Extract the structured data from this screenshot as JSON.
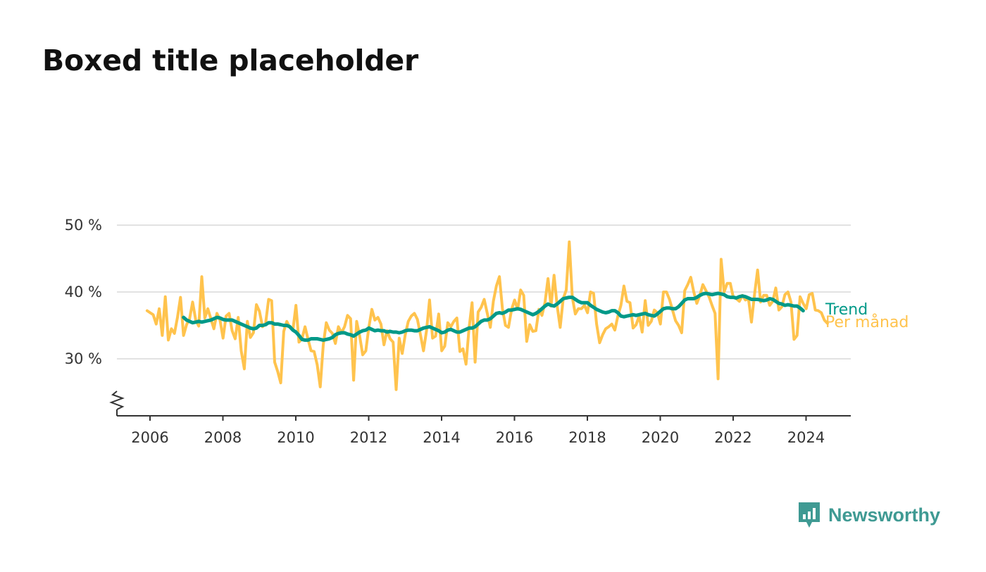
{
  "title": "Boxed title placeholder",
  "subtitle": "",
  "brand": {
    "name": "Newsworthy",
    "color": "#3f9a93",
    "icon": "newsworthy-logo-icon"
  },
  "colors": {
    "trend": "#009988",
    "monthly": "#ffc34d",
    "grid": "#d9d9d9",
    "axis": "#333333"
  },
  "chart_data": {
    "type": "line",
    "title": "Boxed title placeholder",
    "subtitle": "",
    "ylim": [
      22,
      50
    ],
    "yticks": [
      30,
      40,
      50
    ],
    "ytick_labels": [
      "30 %",
      "40 %",
      "50 %"
    ],
    "xlim": [
      2005.1,
      2025.3
    ],
    "xticks": [
      2006,
      2008,
      2010,
      2012,
      2014,
      2016,
      2018,
      2020,
      2022,
      2024
    ],
    "xtick_labels": [
      "2006",
      "2008",
      "2010",
      "2012",
      "2014",
      "2016",
      "2018",
      "2020",
      "2022",
      "2024"
    ],
    "grid": true,
    "axis_break": true,
    "legend": "inline-right",
    "series": [
      {
        "name": "Trend",
        "x_start": 2006.92,
        "step_months": 1,
        "values": [
          36.2,
          35.8,
          35.6,
          35.4,
          35.5,
          35.6,
          35.5,
          35.6,
          35.7,
          35.8,
          36.0,
          36.2,
          36.1,
          35.9,
          35.8,
          35.8,
          35.8,
          35.6,
          35.4,
          35.2,
          35.0,
          34.8,
          34.6,
          34.5,
          34.6,
          35.0,
          35.0,
          35.1,
          35.4,
          35.4,
          35.2,
          35.2,
          35.1,
          35.0,
          35.0,
          34.8,
          34.3,
          34.0,
          33.5,
          32.9,
          32.8,
          32.8,
          33.0,
          33.0,
          33.0,
          32.9,
          32.8,
          32.9,
          33.0,
          33.2,
          33.6,
          33.8,
          33.9,
          33.9,
          33.7,
          33.6,
          33.4,
          33.7,
          34.0,
          34.2,
          34.3,
          34.6,
          34.4,
          34.2,
          34.3,
          34.2,
          34.2,
          34.0,
          34.1,
          34.0,
          34.0,
          33.9,
          34.0,
          34.2,
          34.3,
          34.3,
          34.2,
          34.2,
          34.4,
          34.6,
          34.7,
          34.8,
          34.6,
          34.4,
          34.2,
          33.9,
          34.0,
          34.3,
          34.4,
          34.2,
          34.0,
          34.0,
          34.2,
          34.4,
          34.6,
          34.6,
          34.8,
          35.2,
          35.6,
          35.8,
          35.8,
          36.0,
          36.4,
          36.8,
          36.9,
          36.8,
          37.0,
          37.3,
          37.3,
          37.4,
          37.5,
          37.4,
          37.2,
          37.0,
          36.8,
          36.6,
          36.8,
          37.1,
          37.5,
          37.9,
          38.2,
          38.0,
          37.9,
          38.2,
          38.6,
          39.0,
          39.1,
          39.2,
          39.2,
          38.9,
          38.6,
          38.4,
          38.4,
          38.4,
          38.0,
          37.7,
          37.4,
          37.2,
          37.0,
          36.9,
          37.0,
          37.2,
          37.2,
          36.9,
          36.4,
          36.3,
          36.4,
          36.5,
          36.6,
          36.5,
          36.6,
          36.7,
          36.8,
          36.6,
          36.5,
          36.4,
          36.7,
          37.1,
          37.5,
          37.6,
          37.6,
          37.5,
          37.5,
          37.8,
          38.3,
          38.8,
          39.0,
          39.0,
          39.0,
          39.2,
          39.5,
          39.7,
          39.8,
          39.7,
          39.6,
          39.7,
          39.8,
          39.7,
          39.6,
          39.3,
          39.2,
          39.2,
          39.1,
          39.3,
          39.4,
          39.3,
          39.1,
          38.9,
          38.9,
          38.9,
          38.8,
          38.7,
          38.8,
          39.0,
          38.9,
          38.6,
          38.3,
          38.2,
          38.0,
          38.1,
          38.0,
          37.9,
          37.9,
          37.6,
          37.2
        ]
      },
      {
        "name": "Per månad",
        "x_start": 2005.92,
        "step_months": 1,
        "values": [
          37.2,
          36.9,
          36.6,
          35.2,
          37.5,
          33.5,
          39.3,
          32.8,
          34.5,
          33.8,
          36.2,
          39.2,
          33.5,
          35.1,
          36.0,
          38.5,
          35.8,
          34.9,
          42.3,
          36.1,
          37.5,
          36.0,
          34.5,
          36.8,
          35.8,
          33.1,
          36.4,
          36.8,
          34.2,
          33.0,
          36.2,
          31.2,
          28.5,
          35.6,
          33.2,
          33.9,
          38.1,
          37.1,
          34.8,
          35.2,
          38.9,
          38.7,
          29.5,
          28.1,
          26.4,
          34.1,
          35.6,
          34.7,
          34.3,
          38.0,
          32.5,
          33.0,
          34.8,
          32.9,
          31.2,
          31.1,
          29.1,
          25.8,
          32.1,
          35.4,
          34.3,
          33.8,
          32.3,
          34.8,
          33.9,
          34.8,
          36.5,
          36.0,
          26.8,
          35.6,
          33.4,
          30.6,
          31.2,
          34.7,
          37.4,
          35.8,
          36.2,
          35.2,
          32.1,
          34.2,
          33.0,
          32.5,
          25.4,
          33.1,
          30.8,
          33.6,
          35.6,
          36.4,
          36.8,
          35.9,
          33.6,
          31.2,
          34.2,
          38.8,
          33.1,
          33.4,
          36.7,
          31.2,
          31.9,
          35.4,
          34.8,
          35.6,
          36.1,
          31.1,
          31.5,
          29.2,
          34.6,
          38.4,
          29.5,
          37.0,
          37.7,
          38.9,
          36.8,
          34.7,
          38.6,
          40.9,
          42.3,
          37.5,
          35.0,
          34.7,
          37.4,
          38.8,
          37.4,
          40.3,
          39.5,
          32.6,
          35.1,
          34.1,
          34.2,
          37.4,
          36.5,
          38.4,
          42.0,
          37.9,
          42.5,
          38.0,
          34.7,
          39.0,
          40.3,
          47.5,
          39.2,
          36.7,
          37.5,
          37.5,
          38.0,
          36.9,
          40.0,
          39.8,
          35.2,
          32.4,
          33.6,
          34.5,
          34.8,
          35.2,
          34.3,
          36.4,
          38.0,
          40.9,
          38.6,
          38.4,
          34.6,
          35.1,
          36.4,
          34.0,
          38.7,
          35.0,
          35.6,
          37.3,
          36.9,
          35.2,
          40.0,
          40.0,
          38.9,
          37.3,
          35.7,
          35.0,
          33.9,
          40.2,
          41.1,
          42.2,
          40.0,
          38.3,
          39.5,
          41.1,
          40.2,
          39.3,
          38.0,
          36.8,
          27.0,
          44.9,
          40.0,
          41.3,
          41.3,
          39.2,
          39.0,
          38.6,
          39.5,
          38.8,
          39.0,
          35.5,
          39.7,
          43.3,
          38.5,
          39.5,
          39.5,
          38.0,
          38.6,
          40.6,
          37.3,
          37.8,
          39.6,
          40.0,
          38.5,
          32.9,
          33.5,
          39.3,
          38.3,
          37.5,
          39.6,
          39.8,
          37.3,
          37.2,
          36.9,
          35.8,
          35.3
        ]
      }
    ]
  }
}
